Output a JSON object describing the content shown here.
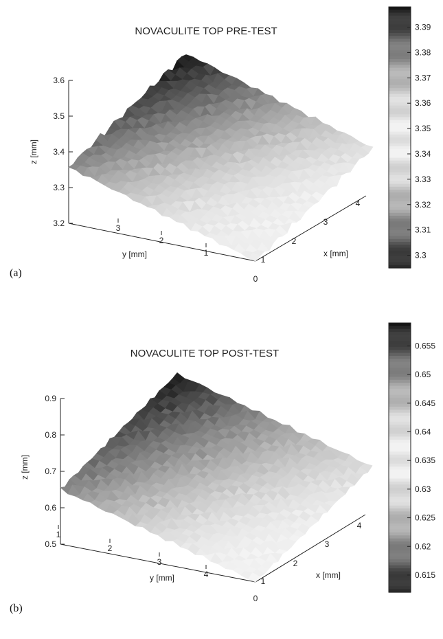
{
  "chart_data": [
    {
      "type": "surface",
      "panel_label": "(a)",
      "title": "NOVACULITE TOP PRE-TEST",
      "xlabel": "x [mm]",
      "ylabel": "y [mm]",
      "zlabel": "z [mm]",
      "x_ticks": [
        "0",
        "1",
        "2",
        "3",
        "4"
      ],
      "y_ticks": [
        "1",
        "2",
        "3"
      ],
      "z_ticks": [
        "3.2",
        "3.3",
        "3.4",
        "3.5",
        "3.6"
      ],
      "zlim": [
        3.2,
        3.6
      ],
      "colorbar": {
        "ticks": [
          "3.39",
          "3.38",
          "3.37",
          "3.36",
          "3.35",
          "3.34",
          "3.33",
          "3.32",
          "3.31",
          "3.3"
        ],
        "range": [
          3.295,
          3.398
        ],
        "colormap": "gray"
      },
      "surface_corners_z": {
        "near": 3.33,
        "right": 3.41,
        "back": 3.57,
        "left": 3.39
      }
    },
    {
      "type": "surface",
      "panel_label": "(b)",
      "title": "NOVACULITE  TOP POST-TEST",
      "xlabel": "x [mm]",
      "ylabel": "y [mm]",
      "zlabel": "z [mm]",
      "x_ticks": [
        "0",
        "1",
        "2",
        "3",
        "4"
      ],
      "y_ticks": [
        "4",
        "3",
        "2",
        "1"
      ],
      "z_ticks": [
        "0.5",
        "0.6",
        "0.7",
        "0.8",
        "0.9"
      ],
      "zlim": [
        0.5,
        0.9
      ],
      "colorbar": {
        "ticks": [
          "0.655",
          "0.65",
          "0.645",
          "0.64",
          "0.635",
          "0.63",
          "0.625",
          "0.62",
          "0.615"
        ],
        "range": [
          0.612,
          0.659
        ],
        "colormap": "gray"
      },
      "surface_corners_z": {
        "near": 0.54,
        "right": 0.7,
        "back": 0.83,
        "left": 0.65
      }
    }
  ]
}
